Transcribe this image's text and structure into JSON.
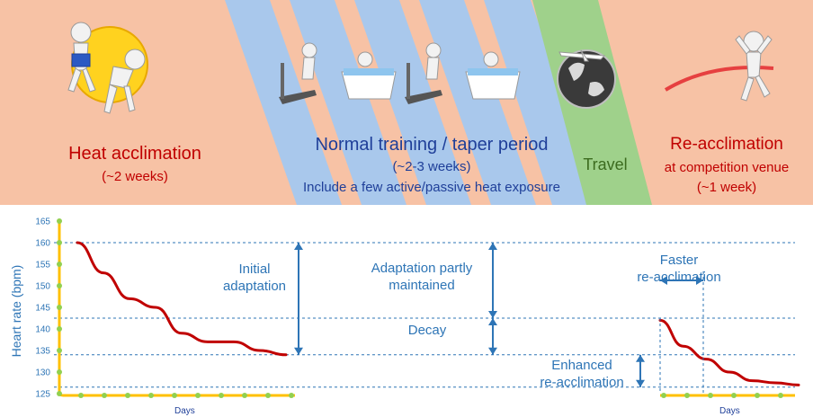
{
  "banner": {
    "phase1": {
      "title": "Heat acclimation",
      "duration": "(~2 weeks)"
    },
    "phase2": {
      "title": "Normal training / taper period",
      "duration": "(~2-3 weeks)",
      "note": "Include a few active/passive heat exposure"
    },
    "phase3": {
      "title": "Travel"
    },
    "phase4": {
      "title": "Re-acclimation",
      "subtitle": "at competition venue",
      "duration": "(~1 week)"
    },
    "colors": {
      "background": "#f7c2a5",
      "stripe": "#a9c8ec",
      "travel": "#9fd18b",
      "accent_red": "#c00000",
      "accent_blue": "#1f3f99"
    }
  },
  "chart_data": {
    "type": "line",
    "ylabel": "Heart rate (bpm)",
    "xlabel": "Days",
    "ylim": [
      125,
      165
    ],
    "yticks": [
      125,
      130,
      135,
      140,
      145,
      150,
      155,
      160,
      165
    ],
    "series": [
      {
        "panel": "left",
        "values_x": [
          0,
          1,
          2,
          3,
          4,
          5,
          6,
          7,
          8
        ],
        "values": [
          160,
          153,
          147,
          145,
          139,
          137,
          137,
          135,
          134
        ]
      },
      {
        "panel": "right",
        "values_x": [
          0,
          1,
          2,
          3,
          4,
          5,
          6
        ],
        "values": [
          142,
          136,
          133,
          130,
          128,
          127.5,
          127
        ]
      }
    ],
    "reference_lines": [
      160,
      142.5,
      134,
      126.5
    ],
    "annotations": {
      "initial": [
        "Initial",
        "adaptation"
      ],
      "partly": [
        "Adaptation partly",
        "maintained"
      ],
      "decay": "Decay",
      "enhanced": [
        "Enhanced",
        "re-acclimation"
      ],
      "faster": [
        "Faster",
        "re-acclimation"
      ]
    },
    "colors": {
      "line": "#c00000",
      "axis": "#ffc000",
      "guide": "#2e75b6",
      "marker": "#92d050"
    }
  }
}
